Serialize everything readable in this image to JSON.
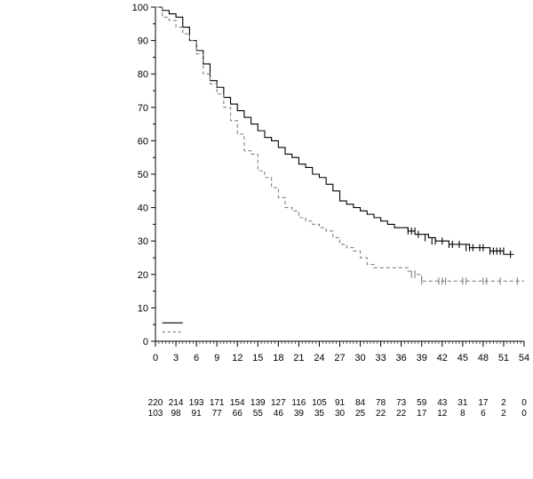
{
  "chart_data": {
    "type": "line",
    "title": "",
    "xlabel": "",
    "ylabel": "",
    "xlim": [
      0,
      54
    ],
    "ylim": [
      0,
      100
    ],
    "x_ticks": [
      0,
      3,
      6,
      9,
      12,
      15,
      18,
      21,
      24,
      27,
      30,
      33,
      36,
      39,
      42,
      45,
      48,
      51,
      54
    ],
    "y_ticks": [
      0,
      10,
      20,
      30,
      40,
      50,
      60,
      70,
      80,
      90,
      100
    ],
    "x_tick_labels": [
      "0",
      "3",
      "6",
      "9",
      "12",
      "15",
      "18",
      "21",
      "24",
      "27",
      "30",
      "33",
      "36",
      "39",
      "42",
      "45",
      "48",
      "51",
      "54"
    ],
    "y_tick_labels": [
      "0",
      "10",
      "20",
      "30",
      "40",
      "50",
      "60",
      "70",
      "80",
      "90",
      "100"
    ],
    "grid": false,
    "legend": {
      "placement": "bottom-left",
      "entries": [
        "",
        ""
      ]
    },
    "colors": {
      "series_1": "#000000",
      "series_2": "#808080"
    },
    "series": [
      {
        "line_style": "solid",
        "x": [
          0,
          1,
          2,
          3,
          4,
          5,
          6,
          7,
          8,
          9,
          10,
          11,
          12,
          13,
          14,
          15,
          16,
          17,
          18,
          19,
          20,
          21,
          22,
          23,
          24,
          25,
          26,
          27,
          28,
          29,
          30,
          31,
          32,
          33,
          34,
          35,
          36,
          37,
          38,
          39,
          40,
          41,
          42,
          43,
          44,
          45,
          46,
          47,
          48,
          49,
          50,
          51,
          52.5
        ],
        "y": [
          100,
          99,
          98,
          97,
          94,
          90,
          87,
          83,
          78,
          76,
          73,
          71,
          69,
          67,
          65,
          63,
          61,
          60,
          58,
          56,
          55,
          53,
          52,
          50,
          49,
          47,
          45,
          42,
          41,
          40,
          39,
          38,
          37,
          36,
          35,
          34,
          34,
          33,
          32,
          32,
          31,
          30,
          30,
          29,
          29,
          29,
          28,
          28,
          28,
          27,
          27,
          26,
          26
        ],
        "censored_x": [
          37,
          37.5,
          38,
          38.5,
          39.5,
          40.5,
          41,
          42,
          43,
          43.5,
          44.5,
          45.5,
          46,
          46.5,
          47.5,
          48,
          49,
          49.5,
          50,
          50.5,
          51,
          52
        ],
        "censored_y": [
          33,
          33,
          33,
          32,
          31,
          30,
          30,
          30,
          29,
          29,
          29,
          28,
          28,
          28,
          28,
          28,
          27,
          27,
          27,
          27,
          27,
          26
        ]
      },
      {
        "line_style": "dashed",
        "x": [
          0,
          1,
          2,
          3,
          4,
          5,
          6,
          7,
          8,
          9,
          10,
          11,
          12,
          13,
          14,
          15,
          16,
          17,
          18,
          19,
          20,
          21,
          22,
          23,
          24,
          25,
          26,
          27,
          28,
          29,
          30,
          31,
          32,
          33,
          34,
          35,
          36,
          37,
          38,
          39,
          40,
          41,
          42,
          43,
          44,
          45,
          46,
          47,
          48,
          49,
          50,
          51,
          52,
          53,
          54
        ],
        "y": [
          100,
          97,
          96,
          94,
          92,
          90,
          86,
          80,
          77,
          74,
          70,
          66,
          62,
          57,
          56,
          51,
          49,
          46,
          43,
          40,
          39,
          37,
          36,
          35,
          34,
          33,
          31,
          29,
          28,
          27,
          25,
          23,
          22,
          22,
          22,
          22,
          22,
          21,
          20,
          18,
          18,
          18,
          18,
          18,
          18,
          18,
          18,
          18,
          18,
          18,
          18,
          18,
          18,
          18,
          18
        ],
        "censored_x": [
          37.5,
          38,
          39,
          41.5,
          42,
          42.5,
          45,
          45.5,
          48,
          48.5,
          50.5,
          53
        ],
        "censored_y": [
          20,
          20,
          18,
          18,
          18,
          18,
          18,
          18,
          18,
          18,
          18,
          18
        ]
      }
    ],
    "risk_table": {
      "times": [
        0,
        3,
        6,
        9,
        12,
        15,
        18,
        21,
        24,
        27,
        30,
        33,
        36,
        39,
        42,
        45,
        48,
        51,
        54
      ],
      "rows": [
        [
          "220",
          "214",
          "193",
          "171",
          "154",
          "139",
          "127",
          "116",
          "105",
          "91",
          "84",
          "78",
          "73",
          "59",
          "43",
          "31",
          "17",
          "2",
          "0"
        ],
        [
          "103",
          "98",
          "91",
          "77",
          "66",
          "55",
          "46",
          "39",
          "35",
          "30",
          "25",
          "22",
          "22",
          "17",
          "12",
          "8",
          "6",
          "2",
          "0"
        ]
      ]
    }
  }
}
